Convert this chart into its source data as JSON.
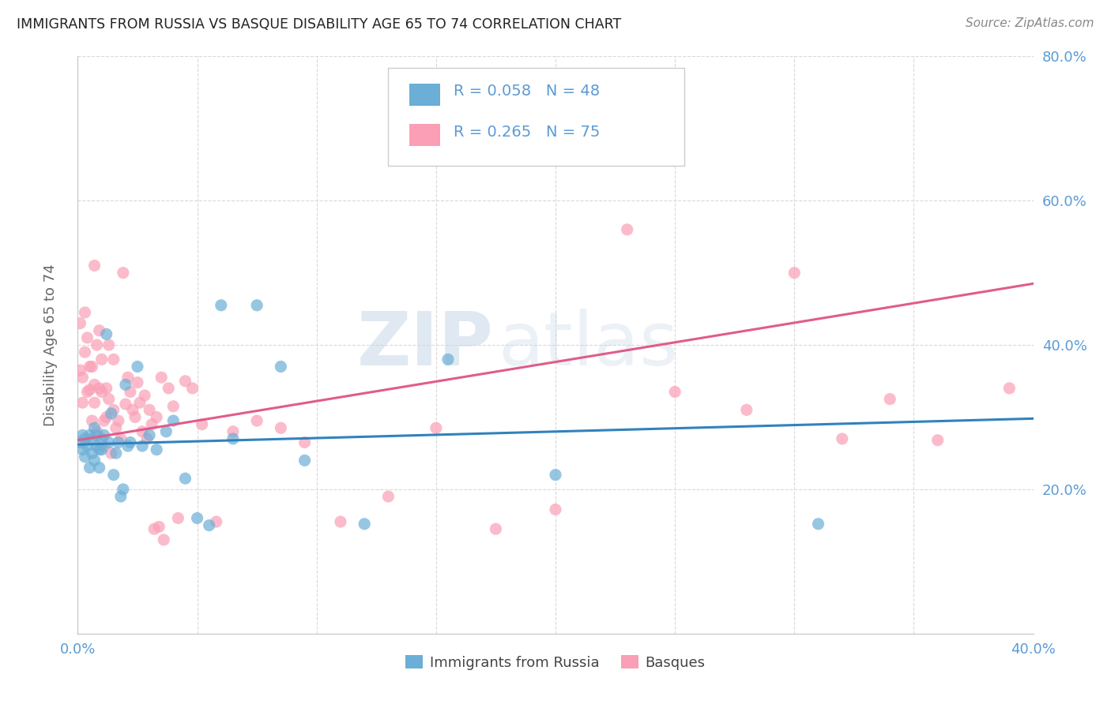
{
  "title": "IMMIGRANTS FROM RUSSIA VS BASQUE DISABILITY AGE 65 TO 74 CORRELATION CHART",
  "source": "Source: ZipAtlas.com",
  "ylabel": "Disability Age 65 to 74",
  "xlim": [
    0.0,
    0.4
  ],
  "ylim": [
    0.0,
    0.8
  ],
  "color_blue": "#6baed6",
  "color_pink": "#fa9fb5",
  "color_line_blue": "#3182bd",
  "color_line_pink": "#e05c8a",
  "color_axis": "#5b9bd5",
  "watermark_zip": "ZIP",
  "watermark_atlas": "atlas",
  "blue_scatter_x": [
    0.001,
    0.002,
    0.002,
    0.003,
    0.003,
    0.004,
    0.005,
    0.005,
    0.006,
    0.006,
    0.007,
    0.007,
    0.008,
    0.008,
    0.009,
    0.009,
    0.01,
    0.01,
    0.011,
    0.012,
    0.013,
    0.014,
    0.015,
    0.016,
    0.017,
    0.018,
    0.019,
    0.02,
    0.021,
    0.022,
    0.025,
    0.027,
    0.03,
    0.033,
    0.037,
    0.04,
    0.045,
    0.05,
    0.055,
    0.06,
    0.065,
    0.075,
    0.085,
    0.095,
    0.12,
    0.155,
    0.2,
    0.31
  ],
  "blue_scatter_y": [
    0.265,
    0.255,
    0.275,
    0.245,
    0.27,
    0.26,
    0.23,
    0.275,
    0.25,
    0.27,
    0.24,
    0.285,
    0.26,
    0.275,
    0.255,
    0.23,
    0.27,
    0.255,
    0.275,
    0.415,
    0.265,
    0.305,
    0.22,
    0.25,
    0.265,
    0.19,
    0.2,
    0.345,
    0.26,
    0.265,
    0.37,
    0.26,
    0.275,
    0.255,
    0.28,
    0.295,
    0.215,
    0.16,
    0.15,
    0.455,
    0.27,
    0.455,
    0.37,
    0.24,
    0.152,
    0.38,
    0.22,
    0.152
  ],
  "pink_scatter_x": [
    0.001,
    0.001,
    0.002,
    0.002,
    0.003,
    0.003,
    0.004,
    0.004,
    0.005,
    0.005,
    0.006,
    0.006,
    0.007,
    0.007,
    0.007,
    0.008,
    0.008,
    0.009,
    0.009,
    0.01,
    0.01,
    0.011,
    0.011,
    0.012,
    0.012,
    0.013,
    0.013,
    0.014,
    0.015,
    0.015,
    0.016,
    0.017,
    0.018,
    0.019,
    0.02,
    0.021,
    0.022,
    0.023,
    0.024,
    0.025,
    0.026,
    0.027,
    0.028,
    0.029,
    0.03,
    0.031,
    0.032,
    0.033,
    0.034,
    0.035,
    0.036,
    0.038,
    0.04,
    0.042,
    0.045,
    0.048,
    0.052,
    0.058,
    0.065,
    0.075,
    0.085,
    0.095,
    0.11,
    0.13,
    0.15,
    0.175,
    0.2,
    0.23,
    0.25,
    0.28,
    0.3,
    0.32,
    0.34,
    0.36,
    0.39
  ],
  "pink_scatter_y": [
    0.43,
    0.365,
    0.355,
    0.32,
    0.445,
    0.39,
    0.335,
    0.41,
    0.338,
    0.37,
    0.295,
    0.37,
    0.345,
    0.32,
    0.51,
    0.28,
    0.4,
    0.42,
    0.34,
    0.335,
    0.38,
    0.26,
    0.295,
    0.3,
    0.34,
    0.325,
    0.4,
    0.25,
    0.38,
    0.31,
    0.285,
    0.295,
    0.27,
    0.5,
    0.318,
    0.355,
    0.335,
    0.31,
    0.3,
    0.348,
    0.32,
    0.28,
    0.33,
    0.27,
    0.31,
    0.29,
    0.145,
    0.3,
    0.148,
    0.355,
    0.13,
    0.34,
    0.315,
    0.16,
    0.35,
    0.34,
    0.29,
    0.155,
    0.28,
    0.295,
    0.285,
    0.265,
    0.155,
    0.19,
    0.285,
    0.145,
    0.172,
    0.56,
    0.335,
    0.31,
    0.5,
    0.27,
    0.325,
    0.268,
    0.34
  ],
  "blue_line_x": [
    0.0,
    0.4
  ],
  "blue_line_y": [
    0.262,
    0.298
  ],
  "pink_line_x": [
    0.0,
    0.4
  ],
  "pink_line_y": [
    0.268,
    0.485
  ],
  "background_color": "#ffffff",
  "grid_color": "#d9d9d9"
}
